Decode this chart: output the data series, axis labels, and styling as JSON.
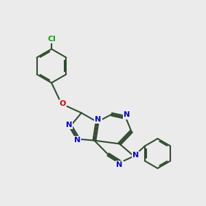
{
  "bg_color": "#ebebeb",
  "bond_color": "#2d4a2d",
  "bond_lw": 1.5,
  "dbo": 0.065,
  "n_color": "#0000cc",
  "o_color": "#cc0000",
  "cl_color": "#00aa00",
  "fs": 8.0,
  "xlim": [
    0,
    10
  ],
  "ylim": [
    0,
    10
  ]
}
